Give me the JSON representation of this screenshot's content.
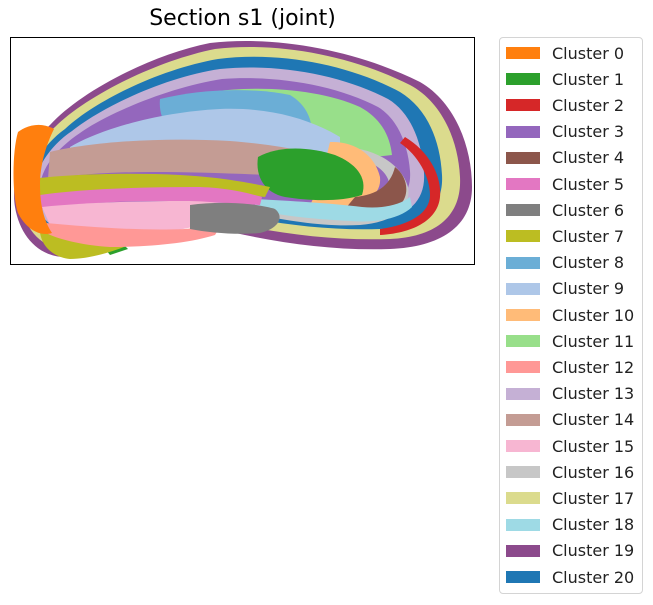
{
  "chart_data": {
    "type": "spatial-cluster-map",
    "title": "Section s1 (joint)",
    "axes_visible": false,
    "legend_placement": "outside-right",
    "legend": [
      {
        "name": "Cluster 0",
        "color": "#ff7f0e"
      },
      {
        "name": "Cluster 1",
        "color": "#2ca02c"
      },
      {
        "name": "Cluster 2",
        "color": "#d62728"
      },
      {
        "name": "Cluster 3",
        "color": "#9467bd"
      },
      {
        "name": "Cluster 4",
        "color": "#8c564b"
      },
      {
        "name": "Cluster 5",
        "color": "#e377c2"
      },
      {
        "name": "Cluster 6",
        "color": "#7f7f7f"
      },
      {
        "name": "Cluster 7",
        "color": "#bcbd22"
      },
      {
        "name": "Cluster 8",
        "color": "#6baed6"
      },
      {
        "name": "Cluster 9",
        "color": "#aec7e8"
      },
      {
        "name": "Cluster 10",
        "color": "#ffbb78"
      },
      {
        "name": "Cluster 11",
        "color": "#98df8a"
      },
      {
        "name": "Cluster 12",
        "color": "#ff9896"
      },
      {
        "name": "Cluster 13",
        "color": "#c5b0d5"
      },
      {
        "name": "Cluster 14",
        "color": "#c49c94"
      },
      {
        "name": "Cluster 15",
        "color": "#f7b6d2"
      },
      {
        "name": "Cluster 16",
        "color": "#c7c7c7"
      },
      {
        "name": "Cluster 17",
        "color": "#dbdb8d"
      },
      {
        "name": "Cluster 18",
        "color": "#9edae5"
      },
      {
        "name": "Cluster 19",
        "color": "#8c4a8c"
      },
      {
        "name": "Cluster 20",
        "color": "#1f77b4"
      }
    ]
  }
}
